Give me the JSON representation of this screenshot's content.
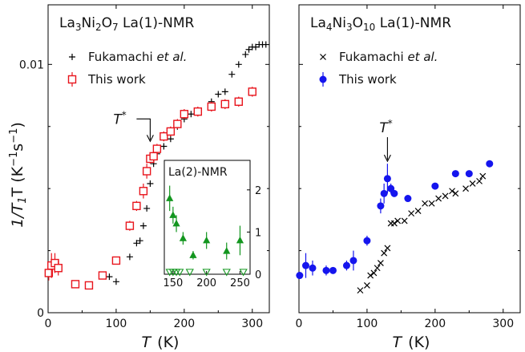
{
  "figure": {
    "ylabel_main": "1/T",
    "ylabel_sub": "1",
    "ylabel_mid": "T  (K",
    "ylabel_sup1": "−1",
    "ylabel_mid2": "s",
    "ylabel_sup2": "−1",
    "ylabel_end": ")",
    "xlabel_T": "T",
    "xlabel_unit": "(K)"
  },
  "chart_data": [
    {
      "type": "scatter",
      "title_parts": [
        "La",
        "3",
        "Ni",
        "2",
        "O",
        "7",
        "  La(1)-NMR"
      ],
      "xlabel": "T (K)",
      "ylabel": "1/T1T (K^-1 s^-1)",
      "xlim": [
        0,
        325
      ],
      "ylim": [
        0,
        0.0124
      ],
      "x_ticks": [
        "0",
        "100",
        "200",
        "300"
      ],
      "x_tick_values": [
        0,
        100,
        200,
        300
      ],
      "y_ticks": [
        "0",
        "0.01"
      ],
      "y_tick_values": [
        0,
        0.01
      ],
      "legend": {
        "position": "top-left"
      },
      "annotation": {
        "label": "T",
        "sup": "*",
        "x": 150,
        "y": 0.0069
      },
      "series": [
        {
          "name": "Fukamachi et al.",
          "name_plain": "Fukamachi ",
          "name_italic": "et al.",
          "marker": "plus",
          "color": "#000000",
          "points": [
            [
              90,
              0.00145
            ],
            [
              100,
              0.00125
            ],
            [
              120,
              0.00225
            ],
            [
              130,
              0.0028
            ],
            [
              135,
              0.0029
            ],
            [
              140,
              0.0035
            ],
            [
              145,
              0.0042
            ],
            [
              150,
              0.0052
            ],
            [
              155,
              0.006
            ],
            [
              160,
              0.0064
            ],
            [
              170,
              0.0067
            ],
            [
              180,
              0.007
            ],
            [
              190,
              0.0075
            ],
            [
              200,
              0.0078
            ],
            [
              210,
              0.008
            ],
            [
              220,
              0.0081
            ],
            [
              240,
              0.0085
            ],
            [
              250,
              0.0088
            ],
            [
              260,
              0.0089
            ],
            [
              270,
              0.0096
            ],
            [
              280,
              0.01
            ],
            [
              290,
              0.0104
            ],
            [
              295,
              0.0106
            ],
            [
              300,
              0.0107
            ],
            [
              305,
              0.0107
            ],
            [
              310,
              0.0108
            ],
            [
              315,
              0.0108
            ],
            [
              320,
              0.0108
            ]
          ]
        },
        {
          "name": "This work",
          "marker": "open-square",
          "color": "#e8141c",
          "points": [
            [
              1,
              0.0016,
              0.0003
            ],
            [
              5,
              0.0019,
              0.0005
            ],
            [
              10,
              0.002,
              0.0004
            ],
            [
              15,
              0.0018,
              0.0003
            ],
            [
              40,
              0.00115,
              0.0001
            ],
            [
              60,
              0.0011,
              0.0001
            ],
            [
              80,
              0.0015,
              0.0001
            ],
            [
              100,
              0.0021,
              0.0001
            ],
            [
              120,
              0.0035,
              0.0002
            ],
            [
              130,
              0.0043,
              0.0002
            ],
            [
              140,
              0.0049,
              0.0003
            ],
            [
              145,
              0.0057,
              0.0003
            ],
            [
              150,
              0.0062,
              0.0002
            ],
            [
              155,
              0.0063,
              0.0002
            ],
            [
              160,
              0.0066,
              0.0002
            ],
            [
              170,
              0.0071,
              0.0002
            ],
            [
              180,
              0.0073,
              0.0002
            ],
            [
              190,
              0.0076,
              0.0002
            ],
            [
              200,
              0.008,
              0.0002
            ],
            [
              220,
              0.0081,
              0.0002
            ],
            [
              240,
              0.0083,
              0.0002
            ],
            [
              260,
              0.0084,
              0.0002
            ],
            [
              280,
              0.0085,
              0.0002
            ],
            [
              300,
              0.0089,
              0.0002
            ]
          ]
        }
      ],
      "inset": {
        "title": "La(2)-NMR",
        "xlim": [
          137,
          265
        ],
        "ylim": [
          0,
          2.7
        ],
        "x_ticks": [
          "150",
          "200",
          "250"
        ],
        "x_tick_values": [
          150,
          200,
          250
        ],
        "y_ticks": [
          "0",
          "1",
          "2"
        ],
        "y_tick_values": [
          0,
          1,
          2
        ],
        "series": [
          {
            "marker": "filled-triangle",
            "color": "#13961f",
            "points": [
              [
                145,
                1.8,
                0.3
              ],
              [
                150,
                1.4,
                0.2
              ],
              [
                155,
                1.2,
                0.2
              ],
              [
                165,
                0.85,
                0.15
              ],
              [
                180,
                0.45,
                0.1
              ],
              [
                200,
                0.8,
                0.2
              ],
              [
                230,
                0.55,
                0.2
              ],
              [
                250,
                0.8,
                0.35
              ]
            ]
          },
          {
            "marker": "open-triangle-down",
            "color": "#13961f",
            "points": [
              [
                145,
                0.05
              ],
              [
                150,
                0.05
              ],
              [
                155,
                0.05
              ],
              [
                160,
                0.05
              ],
              [
                175,
                0.05
              ],
              [
                200,
                0.05
              ],
              [
                230,
                0.05
              ],
              [
                255,
                0.05
              ]
            ]
          }
        ]
      }
    },
    {
      "type": "scatter",
      "title_parts": [
        "La",
        "4",
        "Ni",
        "3",
        "O",
        "10",
        "  La(1)-NMR"
      ],
      "xlabel": "T (K)",
      "ylabel": "1/T1T (K^-1 s^-1)",
      "xlim": [
        0,
        325
      ],
      "ylim": [
        0,
        0.0124
      ],
      "x_ticks": [
        "0",
        "100",
        "200",
        "300"
      ],
      "x_tick_values": [
        0,
        100,
        200,
        300
      ],
      "y_ticks": [],
      "y_tick_values": [],
      "legend": {
        "position": "top-left"
      },
      "annotation": {
        "label": "T",
        "sup": "*",
        "x": 130,
        "y": 0.0061
      },
      "series": [
        {
          "name": "Fukamachi et al.",
          "name_plain": "Fukamachi ",
          "name_italic": "et al.",
          "marker": "x",
          "color": "#000000",
          "points": [
            [
              90,
              0.0009
            ],
            [
              100,
              0.0011
            ],
            [
              105,
              0.0015
            ],
            [
              110,
              0.0016
            ],
            [
              115,
              0.0018
            ],
            [
              120,
              0.002
            ],
            [
              125,
              0.0024
            ],
            [
              130,
              0.0026
            ],
            [
              135,
              0.0036
            ],
            [
              140,
              0.0036
            ],
            [
              145,
              0.0037
            ],
            [
              155,
              0.0037
            ],
            [
              165,
              0.004
            ],
            [
              175,
              0.0041
            ],
            [
              185,
              0.0044
            ],
            [
              195,
              0.0044
            ],
            [
              205,
              0.0046
            ],
            [
              215,
              0.0047
            ],
            [
              225,
              0.0049
            ],
            [
              230,
              0.0048
            ],
            [
              245,
              0.005
            ],
            [
              255,
              0.0052
            ],
            [
              265,
              0.0053
            ],
            [
              270,
              0.0055
            ]
          ]
        },
        {
          "name": "This work",
          "marker": "filled-circle",
          "color": "#1515ee",
          "points": [
            [
              1,
              0.0015,
              0.0001
            ],
            [
              10,
              0.0019,
              0.0005
            ],
            [
              20,
              0.0018,
              0.0003
            ],
            [
              40,
              0.0017,
              0.0002
            ],
            [
              50,
              0.0017,
              0.0001
            ],
            [
              70,
              0.0019,
              0.0002
            ],
            [
              80,
              0.0021,
              0.0004
            ],
            [
              100,
              0.0029,
              0.0002
            ],
            [
              120,
              0.0043,
              0.0003
            ],
            [
              125,
              0.0048,
              0.0004
            ],
            [
              130,
              0.0054,
              0.0006
            ],
            [
              135,
              0.005,
              0.0002
            ],
            [
              140,
              0.0048,
              0.0001
            ],
            [
              160,
              0.0046,
              0.0001
            ],
            [
              200,
              0.0051,
              0.0001
            ],
            [
              230,
              0.0056,
              0.0001
            ],
            [
              250,
              0.0056,
              0.0001
            ],
            [
              280,
              0.006,
              0.0001
            ]
          ]
        }
      ]
    }
  ]
}
